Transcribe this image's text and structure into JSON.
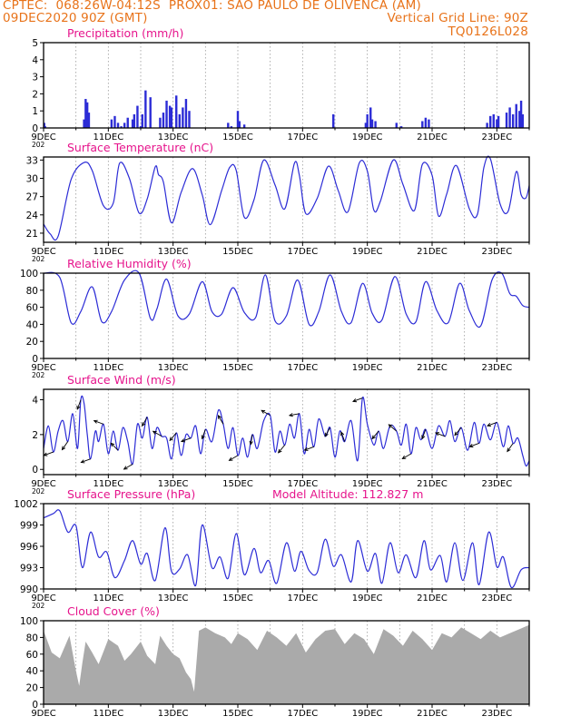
{
  "header": {
    "line1_left": "CPTEC:  068:26W-04:12S  PROX01: SAO PAULO DE OLIVENCA (AM)",
    "line2_left": "09DEC2020 90Z (GMT)",
    "line2_right": "Vertical Grid Line: 90Z",
    "line3_right": "TQ0126L028"
  },
  "colors": {
    "header": "#e8731a",
    "panel_title": "#e6148c",
    "series": "#2c2cd6",
    "bars": "#2c2cd6",
    "cloud": "#aaaaaa",
    "grid": "#9a9a9a",
    "frame": "#000000"
  },
  "x_ticks": [
    "9DEC",
    "11DEC",
    "13DEC",
    "15DEC",
    "17DEC",
    "19DEC",
    "21DEC",
    "23DEC"
  ],
  "x_year_fragment": "202",
  "chart_data": [
    {
      "type": "bar",
      "title": "Precipitation (mm/h)",
      "ylim": [
        0,
        5
      ],
      "yticks": [
        "0",
        "1",
        "2",
        "3",
        "4",
        "5"
      ],
      "x": [
        0.02,
        0.05,
        1.25,
        1.3,
        1.35,
        1.4,
        2.1,
        2.2,
        2.3,
        2.4,
        2.5,
        2.6,
        2.75,
        2.8,
        2.9,
        3.0,
        3.05,
        3.15,
        3.3,
        3.6,
        3.7,
        3.8,
        3.9,
        3.95,
        4.1,
        4.2,
        4.3,
        4.4,
        4.5,
        5.7,
        5.8,
        6.0,
        6.05,
        6.2,
        8.95,
        9.95,
        10.0,
        10.1,
        10.15,
        10.25,
        10.9,
        11.05,
        11.7,
        11.8,
        11.9,
        13.7,
        13.8,
        13.9,
        14.0,
        14.05,
        14.3,
        14.4,
        14.5,
        14.6,
        14.7,
        14.75,
        14.8
      ],
      "values": [
        0.3,
        0.1,
        0.5,
        1.7,
        1.5,
        0.9,
        0.5,
        0.7,
        0.3,
        0.1,
        0.3,
        0.6,
        0.5,
        0.8,
        1.3,
        0.1,
        0.8,
        2.2,
        1.8,
        0.6,
        0.9,
        1.6,
        1.3,
        1.2,
        1.9,
        0.8,
        1.2,
        1.7,
        1.0,
        0.3,
        0.1,
        1.0,
        0.4,
        0.2,
        0.8,
        0.3,
        0.8,
        1.2,
        0.5,
        0.4,
        0.3,
        0.1,
        0.4,
        0.6,
        0.5,
        0.3,
        0.7,
        0.8,
        0.5,
        0.7,
        0.9,
        1.2,
        0.8,
        1.4,
        1.0,
        1.6,
        0.8
      ]
    },
    {
      "type": "line",
      "title": "Surface Temperature (nC)",
      "ylim": [
        19.5,
        33.5
      ],
      "yticks": [
        "21",
        "24",
        "27",
        "30",
        "33"
      ],
      "x": [
        0,
        0.2,
        0.45,
        0.85,
        1.25,
        1.5,
        1.85,
        2.15,
        2.35,
        2.65,
        2.95,
        3.2,
        3.45,
        3.55,
        3.7,
        3.95,
        4.25,
        4.6,
        4.9,
        5.15,
        5.5,
        5.75,
        5.95,
        6.2,
        6.5,
        6.8,
        7.15,
        7.45,
        7.75,
        7.9,
        8.1,
        8.45,
        8.8,
        9.1,
        9.4,
        9.75,
        10.0,
        10.2,
        10.4,
        10.8,
        11.1,
        11.45,
        11.7,
        12.0,
        12.2,
        12.45,
        12.75,
        13.15,
        13.4,
        13.6,
        13.8,
        14.1,
        14.35,
        14.6,
        14.75,
        14.9,
        15.0
      ],
      "values": [
        22.5,
        20.9,
        20.5,
        29.8,
        32.6,
        31.3,
        25.5,
        25.9,
        32.5,
        30.0,
        24.3,
        26.6,
        31.9,
        30.6,
        29.4,
        22.7,
        27.7,
        31.6,
        27.3,
        22.4,
        28.0,
        31.8,
        31.3,
        23.6,
        26.5,
        33.0,
        28.9,
        25.0,
        32.5,
        30.5,
        24.2,
        26.7,
        32.0,
        28.0,
        24.5,
        32.5,
        31.2,
        24.8,
        26.2,
        33.0,
        29.0,
        24.7,
        32.3,
        30.5,
        23.8,
        27.4,
        32.1,
        25.0,
        24.1,
        31.8,
        33.2,
        25.8,
        24.6,
        31.1,
        27.3,
        26.8,
        28.8
      ]
    },
    {
      "type": "line",
      "title": "Relative Humidity (%)",
      "ylim": [
        0,
        100
      ],
      "yticks": [
        "0",
        "20",
        "40",
        "60",
        "80",
        "100"
      ],
      "x": [
        0,
        0.5,
        0.85,
        1.15,
        1.5,
        1.8,
        2.1,
        2.5,
        2.95,
        3.3,
        3.5,
        3.8,
        4.15,
        4.5,
        4.9,
        5.2,
        5.5,
        5.85,
        6.2,
        6.55,
        6.85,
        7.15,
        7.5,
        7.85,
        8.2,
        8.5,
        8.85,
        9.2,
        9.5,
        9.85,
        10.15,
        10.45,
        10.85,
        11.2,
        11.5,
        11.8,
        12.15,
        12.5,
        12.85,
        13.15,
        13.5,
        13.85,
        14.15,
        14.4,
        14.6,
        14.8,
        15.0
      ],
      "values": [
        100,
        95,
        42,
        55,
        84,
        43,
        55,
        92,
        100,
        47,
        58,
        93,
        50,
        52,
        90,
        55,
        52,
        83,
        54,
        48,
        98,
        44,
        50,
        92,
        40,
        55,
        98,
        55,
        42,
        88,
        53,
        45,
        96,
        52,
        43,
        90,
        56,
        42,
        88,
        56,
        38,
        92,
        100,
        76,
        73,
        62,
        60
      ]
    },
    {
      "type": "line",
      "title": "Surface Wind (m/s)",
      "ylim": [
        -0.3,
        4.6
      ],
      "yticks": [
        "0",
        "2",
        "4"
      ],
      "x": [
        0,
        0.15,
        0.3,
        0.45,
        0.6,
        0.75,
        0.9,
        1.05,
        1.15,
        1.25,
        1.35,
        1.45,
        1.6,
        1.7,
        1.85,
        2.0,
        2.15,
        2.3,
        2.45,
        2.6,
        2.75,
        2.9,
        3.05,
        3.2,
        3.35,
        3.5,
        3.65,
        3.8,
        3.95,
        4.1,
        4.25,
        4.4,
        4.55,
        4.7,
        4.85,
        5.0,
        5.2,
        5.4,
        5.55,
        5.7,
        5.85,
        6.0,
        6.15,
        6.3,
        6.45,
        6.6,
        6.8,
        7.0,
        7.15,
        7.3,
        7.45,
        7.6,
        7.75,
        7.9,
        8.05,
        8.2,
        8.35,
        8.5,
        8.7,
        8.85,
        9.0,
        9.15,
        9.3,
        9.5,
        9.7,
        9.85,
        10.0,
        10.2,
        10.35,
        10.5,
        10.7,
        10.9,
        11.05,
        11.2,
        11.35,
        11.5,
        11.65,
        11.8,
        12.0,
        12.2,
        12.4,
        12.55,
        12.7,
        12.9,
        13.1,
        13.3,
        13.45,
        13.6,
        13.8,
        14.0,
        14.2,
        14.35,
        14.5,
        14.65,
        14.8,
        14.9,
        15.0
      ],
      "values": [
        1.2,
        2.5,
        1.0,
        2.2,
        2.8,
        1.6,
        3.2,
        1.2,
        4.0,
        3.8,
        2.0,
        0.6,
        2.2,
        1.6,
        2.6,
        0.9,
        2.2,
        1.1,
        2.4,
        1.6,
        0.3,
        2.6,
        1.8,
        3.0,
        1.2,
        2.4,
        1.9,
        1.8,
        0.6,
        2.1,
        0.8,
        2.0,
        1.8,
        2.5,
        0.9,
        2.3,
        1.6,
        3.4,
        2.6,
        1.2,
        2.4,
        0.8,
        1.8,
        0.7,
        2.0,
        1.2,
        2.8,
        3.1,
        1.0,
        2.2,
        1.4,
        2.6,
        1.8,
        3.2,
        0.9,
        2.3,
        1.3,
        2.9,
        1.9,
        2.4,
        0.7,
        2.2,
        1.6,
        2.8,
        0.5,
        4.1,
        2.6,
        1.4,
        2.2,
        1.2,
        2.5,
        2.2,
        1.4,
        2.6,
        0.9,
        2.4,
        1.7,
        2.3,
        1.2,
        2.5,
        1.9,
        2.8,
        1.6,
        2.4,
        1.1,
        2.7,
        1.5,
        2.6,
        1.7,
        2.7,
        1.3,
        2.5,
        1.5,
        1.8,
        0.8,
        0.2,
        0.5
      ]
    },
    {
      "type": "line",
      "title": "Surface Pressure (hPa)",
      "subtitle": "Model Altitude: 112.827 m",
      "ylim": [
        990,
        1002
      ],
      "yticks": [
        "990",
        "993",
        "996",
        "999",
        "1002"
      ],
      "x": [
        0,
        0.3,
        0.5,
        0.75,
        1.0,
        1.2,
        1.45,
        1.7,
        1.95,
        2.2,
        2.5,
        2.75,
        3.0,
        3.2,
        3.45,
        3.75,
        3.95,
        4.2,
        4.45,
        4.7,
        4.9,
        5.2,
        5.45,
        5.7,
        5.95,
        6.2,
        6.5,
        6.7,
        6.95,
        7.2,
        7.5,
        7.75,
        7.95,
        8.2,
        8.45,
        8.7,
        8.95,
        9.2,
        9.5,
        9.7,
        10.0,
        10.25,
        10.45,
        10.7,
        10.95,
        11.2,
        11.5,
        11.75,
        11.95,
        12.25,
        12.45,
        12.7,
        12.95,
        13.25,
        13.45,
        13.75,
        14.0,
        14.2,
        14.45,
        14.75,
        15.0
      ],
      "values": [
        1000.0,
        1000.6,
        1001.0,
        998.0,
        998.9,
        993.0,
        998.0,
        994.5,
        995.2,
        991.6,
        994.0,
        996.8,
        993.5,
        995.0,
        991.2,
        998.6,
        992.5,
        992.8,
        994.8,
        990.5,
        999.0,
        993.0,
        994.5,
        991.5,
        997.8,
        992.0,
        995.7,
        992.3,
        994.0,
        990.8,
        996.5,
        992.5,
        995.3,
        992.6,
        992.3,
        997.0,
        993.2,
        994.8,
        991.0,
        996.8,
        992.5,
        995.0,
        990.8,
        996.5,
        992.3,
        994.8,
        991.6,
        996.8,
        992.7,
        994.7,
        991.0,
        996.5,
        991.2,
        996.5,
        990.6,
        998.0,
        993.1,
        994.5,
        990.2,
        992.7,
        993.0
      ]
    },
    {
      "type": "area",
      "title": "Cloud Cover (%)",
      "ylim": [
        0,
        100
      ],
      "yticks": [
        "0",
        "20",
        "40",
        "60",
        "80",
        "100"
      ],
      "x": [
        0,
        0.25,
        0.5,
        0.8,
        1.0,
        1.1,
        1.2,
        1.3,
        1.5,
        1.7,
        2.0,
        2.3,
        2.5,
        2.7,
        3.0,
        3.2,
        3.45,
        3.6,
        3.8,
        4.0,
        4.2,
        4.4,
        4.55,
        4.65,
        4.8,
        5.0,
        5.3,
        5.6,
        5.8,
        6.0,
        6.3,
        6.6,
        6.9,
        7.2,
        7.5,
        7.8,
        8.1,
        8.4,
        8.7,
        9.0,
        9.3,
        9.6,
        9.9,
        10.2,
        10.5,
        10.8,
        11.1,
        11.4,
        11.7,
        12.0,
        12.3,
        12.6,
        12.9,
        13.2,
        13.5,
        13.8,
        14.1,
        14.4,
        14.7,
        15.0
      ],
      "values": [
        88,
        62,
        55,
        82,
        40,
        22,
        50,
        75,
        62,
        48,
        78,
        70,
        52,
        60,
        75,
        58,
        48,
        82,
        70,
        60,
        55,
        38,
        30,
        15,
        88,
        92,
        85,
        80,
        72,
        85,
        78,
        65,
        88,
        80,
        70,
        85,
        62,
        78,
        88,
        90,
        72,
        85,
        78,
        60,
        90,
        82,
        70,
        88,
        78,
        65,
        85,
        80,
        92,
        85,
        78,
        88,
        80,
        85,
        90,
        95
      ]
    }
  ]
}
